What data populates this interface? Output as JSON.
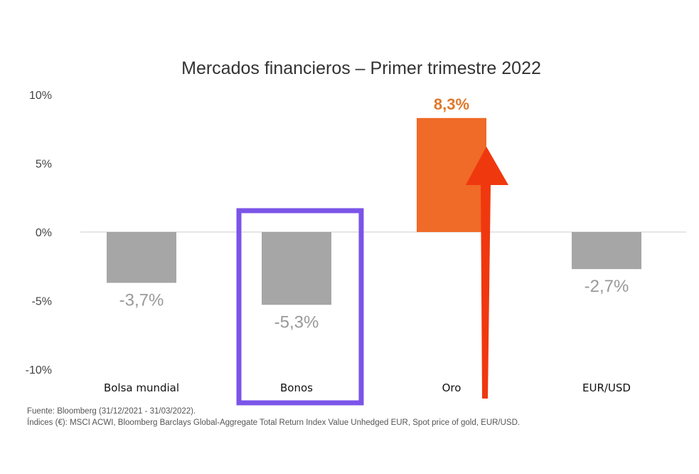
{
  "chart_data": {
    "type": "bar",
    "title": "Mercados financieros – Primer trimestre 2022",
    "categories": [
      "Bolsa mundial",
      "Bonos",
      "Oro",
      "EUR/USD"
    ],
    "values": [
      -3.7,
      -5.3,
      8.3,
      -2.7
    ],
    "data_labels": [
      "-3,7%",
      "-5,3%",
      "8,3%",
      "-2,7%"
    ],
    "ylim": [
      -10,
      10
    ],
    "yticks": [
      10,
      5,
      0,
      -5,
      -10
    ],
    "ytick_labels": [
      "10%",
      "5%",
      "0%",
      "-5%",
      "-10%"
    ],
    "xlabel": "",
    "ylabel": "",
    "grid": false,
    "colors": {
      "negative": "#a6a6a6",
      "positive": "#f06a28",
      "positive_label": "#e0782a",
      "negative_label": "#999999",
      "highlight_box": "#7b54e8",
      "arrow": "#f0380f"
    },
    "highlighted_category": "Bonos"
  },
  "footer": {
    "source": "Fuente: Bloomberg (31/12/2021 - 31/03/2022).",
    "indices": "Índices (€): MSCI ACWI, Bloomberg Barclays Global-Aggregate Total Return Index Value Unhedged EUR, Spot price of gold, EUR/USD."
  }
}
